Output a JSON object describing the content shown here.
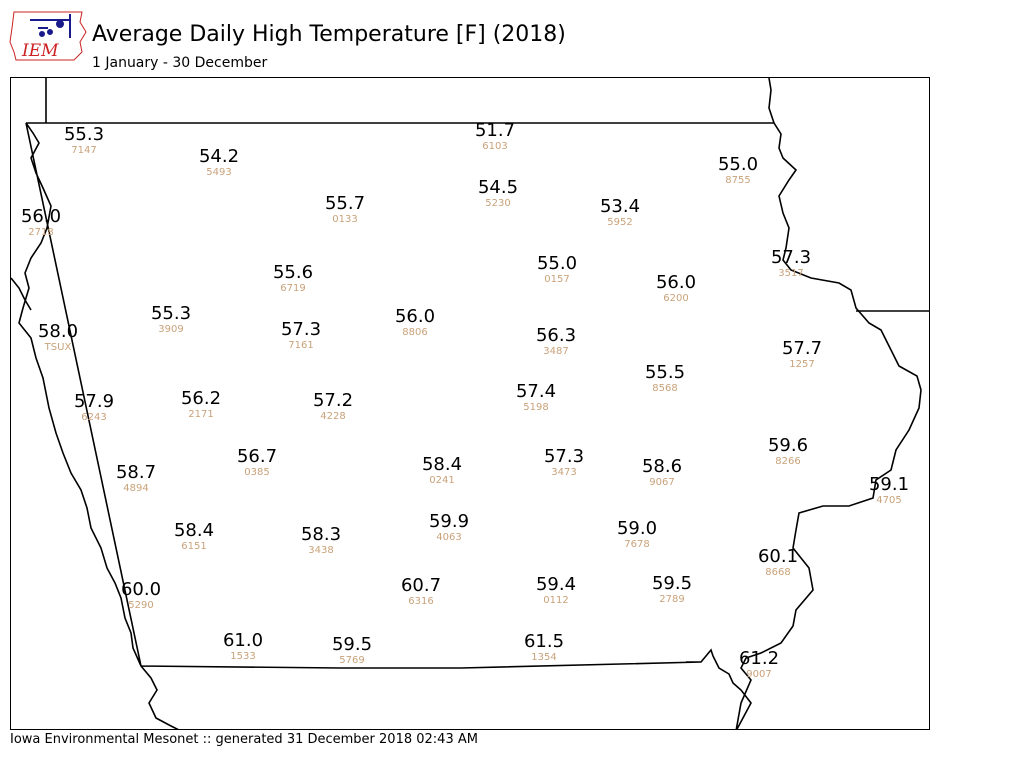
{
  "header": {
    "logo_text": "IEM",
    "title": "Average Daily High Temperature [F] (2018)",
    "subtitle": "1 January - 30 December"
  },
  "footer": {
    "text": "Iowa Environmental Mesonet :: generated 31 December 2018 02:43 AM"
  },
  "colors": {
    "value_text": "#000000",
    "station_id_text": "#c9a27a",
    "border": "#000000",
    "logo_red": "#cc2222",
    "logo_blue": "#1a1a8c"
  },
  "stations": [
    {
      "value": "55.3",
      "id": "7147"
    },
    {
      "value": "51.7",
      "id": "6103"
    },
    {
      "value": "54.2",
      "id": "5493"
    },
    {
      "value": "55.0",
      "id": "8755"
    },
    {
      "value": "54.5",
      "id": "5230"
    },
    {
      "value": "55.7",
      "id": "0133"
    },
    {
      "value": "53.4",
      "id": "5952"
    },
    {
      "value": "56.0",
      "id": "2718"
    },
    {
      "value": "57.3",
      "id": "3517"
    },
    {
      "value": "55.0",
      "id": "0157"
    },
    {
      "value": "55.6",
      "id": "6719"
    },
    {
      "value": "56.0",
      "id": "6200"
    },
    {
      "value": "55.3",
      "id": "3909"
    },
    {
      "value": "56.0",
      "id": "8806"
    },
    {
      "value": "58.0",
      "id": "TSUX"
    },
    {
      "value": "57.3",
      "id": "7161"
    },
    {
      "value": "56.3",
      "id": "3487"
    },
    {
      "value": "57.7",
      "id": "1257"
    },
    {
      "value": "55.5",
      "id": "8568"
    },
    {
      "value": "57.4",
      "id": "5198"
    },
    {
      "value": "57.9",
      "id": "6243"
    },
    {
      "value": "56.2",
      "id": "2171"
    },
    {
      "value": "57.2",
      "id": "4228"
    },
    {
      "value": "59.6",
      "id": "8266"
    },
    {
      "value": "56.7",
      "id": "0385"
    },
    {
      "value": "57.3",
      "id": "3473"
    },
    {
      "value": "58.4",
      "id": "0241"
    },
    {
      "value": "58.6",
      "id": "9067"
    },
    {
      "value": "58.7",
      "id": "4894"
    },
    {
      "value": "59.1",
      "id": "4705"
    },
    {
      "value": "59.9",
      "id": "4063"
    },
    {
      "value": "58.4",
      "id": "6151"
    },
    {
      "value": "58.3",
      "id": "3438"
    },
    {
      "value": "59.0",
      "id": "7678"
    },
    {
      "value": "60.1",
      "id": "8668"
    },
    {
      "value": "60.0",
      "id": "5290"
    },
    {
      "value": "60.7",
      "id": "6316"
    },
    {
      "value": "59.4",
      "id": "0112"
    },
    {
      "value": "59.5",
      "id": "2789"
    },
    {
      "value": "61.0",
      "id": "1533"
    },
    {
      "value": "61.5",
      "id": "1354"
    },
    {
      "value": "59.5",
      "id": "5769"
    },
    {
      "value": "61.2",
      "id": "9007"
    }
  ]
}
